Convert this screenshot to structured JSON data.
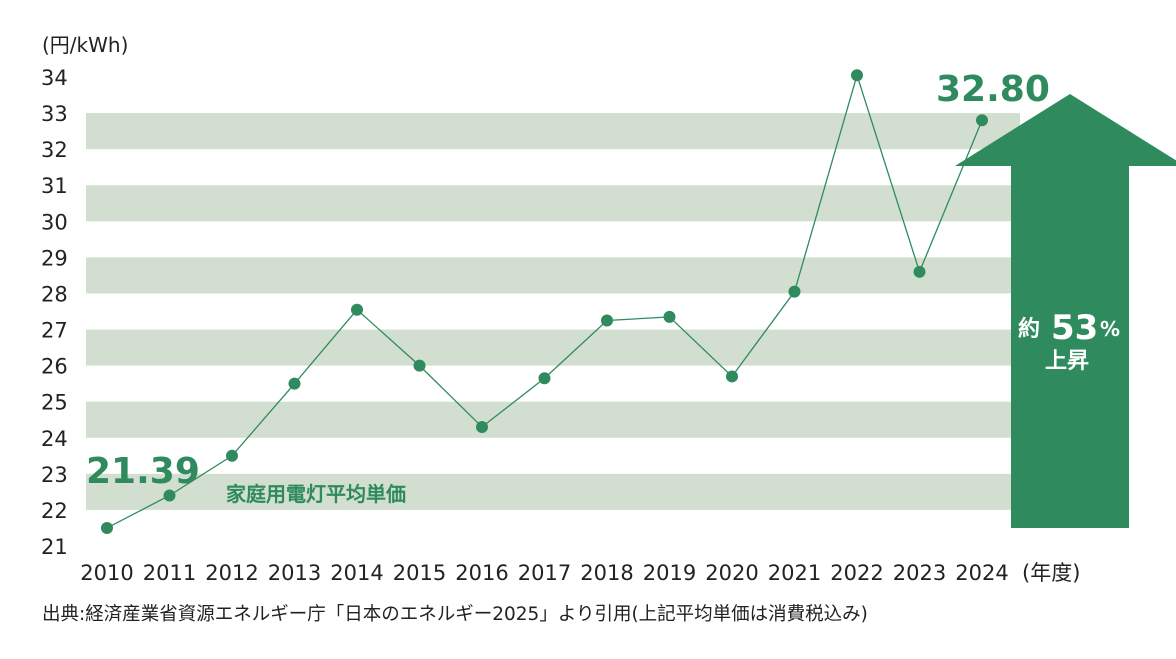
{
  "chart_data": {
    "type": "line",
    "x": [
      "2010",
      "2011",
      "2012",
      "2013",
      "2014",
      "2015",
      "2016",
      "2017",
      "2018",
      "2019",
      "2020",
      "2021",
      "2022",
      "2023",
      "2024"
    ],
    "series": [
      {
        "name": "家庭用電灯平均単価",
        "values": [
          21.5,
          22.4,
          23.5,
          25.5,
          27.55,
          26.0,
          24.3,
          25.65,
          27.25,
          27.35,
          25.7,
          28.05,
          34.05,
          28.6,
          32.8
        ]
      }
    ],
    "ylim": [
      21,
      34
    ],
    "yticks": [
      "21",
      "22",
      "23",
      "24",
      "25",
      "26",
      "27",
      "28",
      "29",
      "30",
      "31",
      "32",
      "33",
      "34"
    ],
    "ylabel": "(円/kWh)",
    "xlabel": "(年度)",
    "labels": {
      "start": "21.39",
      "end": "32.80"
    },
    "arrow": {
      "prefix": "約",
      "value": "53",
      "unit": "%",
      "caption": "上昇"
    },
    "source": "出典:経済産業省資源エネルギー庁「日本のエネルギー2025」より引用(上記平均単価は消費税込み)",
    "colors": {
      "accent": "#2f8b5e",
      "band": "#d2dfd0",
      "text": "#222222"
    },
    "grid": "alternating horizontal bands"
  }
}
